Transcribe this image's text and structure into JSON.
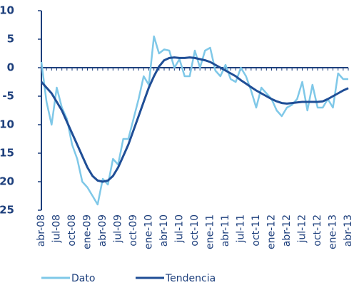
{
  "chart_data": {
    "type": "line",
    "categories": [
      "abr-08",
      null,
      null,
      "jul-08",
      null,
      null,
      "oct-08",
      null,
      null,
      "ene-09",
      null,
      null,
      "abr-09",
      null,
      null,
      "jul-09",
      null,
      null,
      "oct-09",
      null,
      null,
      "ene-10",
      null,
      null,
      "abr-10",
      null,
      null,
      "jul-10",
      null,
      null,
      "oct-10",
      null,
      null,
      "ene-11",
      null,
      null,
      "abr-11",
      null,
      null,
      "jul-11",
      null,
      null,
      "oct-11",
      null,
      null,
      "ene-12",
      null,
      null,
      "abr-12",
      null,
      null,
      "jul-12",
      null,
      null,
      "oct-12",
      null,
      null,
      "ene-13",
      null,
      null,
      "abr-13"
    ],
    "series": [
      {
        "name": "Dato",
        "color": "#7fc8e8",
        "values": [
          1,
          -6,
          -10,
          -3.5,
          -7,
          -9,
          -13.5,
          -16,
          -20,
          -21,
          -22.5,
          -24,
          -19.5,
          -20.5,
          -16,
          -17,
          -12.5,
          -12.5,
          -9,
          -5.5,
          -1.5,
          -3,
          5.5,
          2.5,
          3.2,
          3,
          0,
          1.5,
          -1.5,
          -1.5,
          3,
          0,
          3,
          3.5,
          -0.5,
          -1.5,
          0.5,
          -2,
          -2.5,
          0,
          -1.5,
          -4,
          -7,
          -3.5,
          -4.5,
          -5.5,
          -7.5,
          -8.5,
          -7,
          -6.5,
          -5.5,
          -2.5,
          -7.5,
          -3,
          -7,
          -7,
          -5.5,
          -7,
          -1,
          -2,
          -2
        ]
      },
      {
        "name": "Tendencia",
        "color": "#1f4e96",
        "values": [
          -2.5,
          -3.5,
          -4.5,
          -6,
          -7.5,
          -9.5,
          -11.5,
          -13.5,
          -15.5,
          -17.5,
          -19,
          -19.8,
          -20,
          -19.8,
          -19,
          -17.5,
          -15.5,
          -13.5,
          -11,
          -8.5,
          -6,
          -3.5,
          -1.5,
          0.2,
          1.3,
          1.7,
          1.8,
          1.7,
          1.7,
          1.8,
          1.7,
          1.5,
          1.3,
          1,
          0.5,
          0,
          -0.5,
          -1,
          -1.5,
          -2.2,
          -2.8,
          -3.4,
          -4,
          -4.5,
          -5,
          -5.5,
          -5.9,
          -6.2,
          -6.3,
          -6.2,
          -6.1,
          -6,
          -6,
          -6,
          -6,
          -5.9,
          -5.5,
          -5,
          -4.5,
          -4,
          -3.6
        ]
      }
    ],
    "ylim": [
      -25,
      10
    ],
    "yticks": [
      10,
      5,
      0,
      -5,
      -10,
      -15,
      -20,
      -25
    ]
  }
}
